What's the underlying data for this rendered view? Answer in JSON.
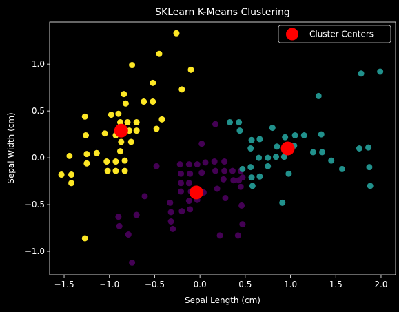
{
  "chart_data": {
    "type": "scatter",
    "title": "SKLearn K-Means Clustering",
    "xlabel": "Sepal Length (cm)",
    "ylabel": "Sepal Width (cm)",
    "xlim": [
      -1.66,
      2.16
    ],
    "ylim": [
      -1.25,
      1.45
    ],
    "xticks": [
      {
        "value": -1.5,
        "label": "−1.5"
      },
      {
        "value": -1.0,
        "label": "−1.0"
      },
      {
        "value": -0.5,
        "label": "−0.5"
      },
      {
        "value": 0.0,
        "label": "0.0"
      },
      {
        "value": 0.5,
        "label": "0.5"
      },
      {
        "value": 1.0,
        "label": "1.0"
      },
      {
        "value": 1.5,
        "label": "1.5"
      },
      {
        "value": 2.0,
        "label": "2.0"
      }
    ],
    "yticks": [
      {
        "value": -1.0,
        "label": "−1.0"
      },
      {
        "value": -0.5,
        "label": "−0.5"
      },
      {
        "value": 0.0,
        "label": "0.0"
      },
      {
        "value": 0.5,
        "label": "0.5"
      },
      {
        "value": 1.0,
        "label": "1.0"
      }
    ],
    "grid": false,
    "legend": {
      "position": "top-right",
      "entries": [
        "Cluster Centers"
      ]
    },
    "colors": {
      "background": "#000000",
      "text": "#ffffff",
      "cluster_0": "#fde725",
      "cluster_1": "#440154",
      "cluster_2": "#21918c",
      "centers": "#ff0000"
    },
    "clusters": [
      {
        "color": "#fde725",
        "points": [
          [
            -0.26,
            1.33
          ],
          [
            -0.75,
            0.99
          ],
          [
            -0.45,
            1.11
          ],
          [
            -0.1,
            0.94
          ],
          [
            -0.84,
            0.68
          ],
          [
            -0.82,
            0.58
          ],
          [
            -0.52,
            0.8
          ],
          [
            -0.2,
            0.73
          ],
          [
            -1.27,
            0.44
          ],
          [
            -0.98,
            0.46
          ],
          [
            -0.9,
            0.47
          ],
          [
            -0.62,
            0.6
          ],
          [
            -0.52,
            0.6
          ],
          [
            -0.88,
            0.38
          ],
          [
            -0.8,
            0.38
          ],
          [
            -0.7,
            0.38
          ],
          [
            -0.42,
            0.41
          ],
          [
            -1.26,
            0.24
          ],
          [
            -1.05,
            0.26
          ],
          [
            -0.93,
            0.24
          ],
          [
            -0.78,
            0.29
          ],
          [
            -0.7,
            0.29
          ],
          [
            -0.48,
            0.31
          ],
          [
            -0.87,
            0.17
          ],
          [
            -0.76,
            0.17
          ],
          [
            -0.88,
            0.07
          ],
          [
            -1.44,
            0.02
          ],
          [
            -1.25,
            0.04
          ],
          [
            -1.14,
            0.05
          ],
          [
            -1.03,
            -0.04
          ],
          [
            -0.93,
            -0.04
          ],
          [
            -0.83,
            -0.03
          ],
          [
            -1.25,
            -0.06
          ],
          [
            -1.53,
            -0.18
          ],
          [
            -1.42,
            -0.18
          ],
          [
            -1.02,
            -0.14
          ],
          [
            -0.93,
            -0.14
          ],
          [
            -0.83,
            -0.14
          ],
          [
            -1.42,
            -0.27
          ],
          [
            -1.27,
            -0.86
          ]
        ]
      },
      {
        "color": "#440154",
        "points": [
          [
            0.17,
            0.36
          ],
          [
            0.02,
            0.15
          ],
          [
            -0.48,
            -0.09
          ],
          [
            -0.22,
            -0.07
          ],
          [
            -0.12,
            -0.07
          ],
          [
            -0.03,
            -0.07
          ],
          [
            0.06,
            -0.05
          ],
          [
            0.16,
            -0.04
          ],
          [
            0.27,
            -0.04
          ],
          [
            -0.21,
            -0.17
          ],
          [
            -0.11,
            -0.17
          ],
          [
            0.02,
            -0.16
          ],
          [
            0.17,
            -0.14
          ],
          [
            0.27,
            -0.14
          ],
          [
            0.36,
            -0.14
          ],
          [
            0.45,
            -0.14
          ],
          [
            0.47,
            -0.21
          ],
          [
            -0.21,
            -0.27
          ],
          [
            -0.12,
            -0.27
          ],
          [
            0.26,
            -0.23
          ],
          [
            0.37,
            -0.24
          ],
          [
            0.43,
            -0.24
          ],
          [
            0.19,
            -0.33
          ],
          [
            0.45,
            -0.31
          ],
          [
            -0.61,
            -0.41
          ],
          [
            -0.21,
            -0.36
          ],
          [
            -0.1,
            -0.36
          ],
          [
            0.04,
            -0.37
          ],
          [
            0.28,
            -0.43
          ],
          [
            -0.33,
            -0.48
          ],
          [
            -0.12,
            -0.46
          ],
          [
            -0.03,
            -0.45
          ],
          [
            0.46,
            -0.51
          ],
          [
            -0.32,
            -0.58
          ],
          [
            -0.2,
            -0.57
          ],
          [
            -0.11,
            -0.55
          ],
          [
            -0.9,
            -0.63
          ],
          [
            -0.7,
            -0.61
          ],
          [
            -0.32,
            -0.68
          ],
          [
            0.47,
            -0.71
          ],
          [
            -0.89,
            -0.73
          ],
          [
            -0.3,
            -0.76
          ],
          [
            -0.79,
            -0.82
          ],
          [
            0.22,
            -0.83
          ],
          [
            0.42,
            -0.83
          ],
          [
            -0.75,
            -1.12
          ]
        ]
      },
      {
        "color": "#21918c",
        "points": [
          [
            1.78,
            0.9
          ],
          [
            1.99,
            0.92
          ],
          [
            1.31,
            0.66
          ],
          [
            0.33,
            0.38
          ],
          [
            0.43,
            0.38
          ],
          [
            0.44,
            0.29
          ],
          [
            0.8,
            0.32
          ],
          [
            1.34,
            0.25
          ],
          [
            1.05,
            0.24
          ],
          [
            1.15,
            0.24
          ],
          [
            0.57,
            0.19
          ],
          [
            0.66,
            0.2
          ],
          [
            0.94,
            0.22
          ],
          [
            0.85,
            0.12
          ],
          [
            1.04,
            0.13
          ],
          [
            1.25,
            0.06
          ],
          [
            1.35,
            0.06
          ],
          [
            1.76,
            0.1
          ],
          [
            1.86,
            0.11
          ],
          [
            0.56,
            0.1
          ],
          [
            0.65,
            0.0
          ],
          [
            0.75,
            0.0
          ],
          [
            0.84,
            0.01
          ],
          [
            0.93,
            0.01
          ],
          [
            1.45,
            -0.03
          ],
          [
            0.56,
            -0.1
          ],
          [
            0.75,
            -0.09
          ],
          [
            0.47,
            -0.12
          ],
          [
            0.66,
            -0.2
          ],
          [
            1.57,
            -0.12
          ],
          [
            1.87,
            -0.1
          ],
          [
            0.98,
            -0.17
          ],
          [
            0.57,
            -0.21
          ],
          [
            0.58,
            -0.3
          ],
          [
            1.88,
            -0.3
          ],
          [
            0.91,
            -0.48
          ]
        ]
      }
    ],
    "centers": {
      "label": "Cluster Centers",
      "color": "#ff0000",
      "points": [
        [
          -0.87,
          0.29
        ],
        [
          0.97,
          0.1
        ],
        [
          -0.04,
          -0.37
        ]
      ]
    }
  }
}
